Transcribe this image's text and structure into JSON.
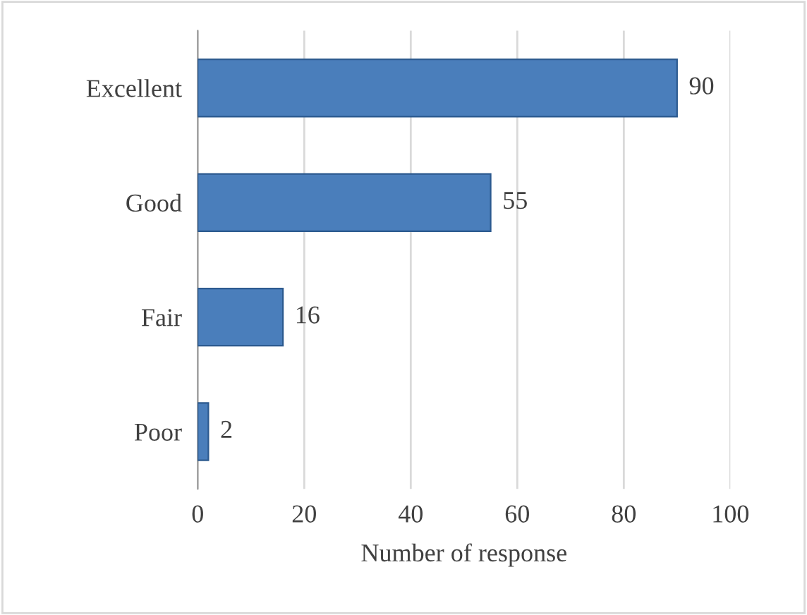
{
  "chart_data": {
    "type": "bar",
    "orientation": "horizontal",
    "xlabel": "Number of response",
    "categories": [
      "Excellent",
      "Good",
      "Fair",
      "Poor"
    ],
    "values": [
      90,
      55,
      16,
      2
    ],
    "color": "#4a7ebb",
    "xlim": [
      0,
      100
    ],
    "xticks": [
      0,
      20,
      40,
      60,
      80,
      100
    ],
    "grid": "x",
    "data_labels": true
  }
}
